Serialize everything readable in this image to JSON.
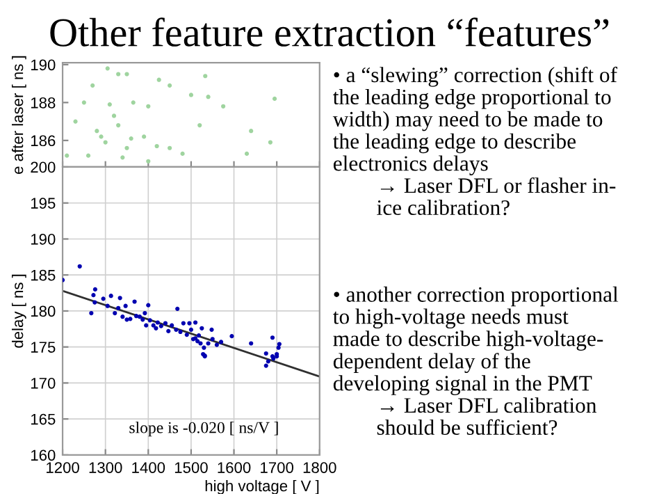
{
  "chart_data": [
    {
      "type": "scatter",
      "title": "Other feature extraction “features”",
      "ylabel": "e after laser [ ns ]",
      "xlim": [
        1200,
        1800
      ],
      "ylim": [
        184.6,
        190.1
      ],
      "yticks": [
        186,
        188,
        190
      ],
      "tick_labels": "y",
      "grid": false,
      "marker": "circle",
      "series": [
        {
          "color": "#9fd49f",
          "x": [
            1305,
            1330,
            1350,
            1270,
            1425,
            1533,
            1250,
            1310,
            1365,
            1400,
            1450,
            1500,
            1540,
            1575,
            1695,
            1230,
            1280,
            1300,
            1330,
            1360,
            1390,
            1420,
            1450,
            1520,
            1640,
            1685,
            1210,
            1260,
            1340,
            1400,
            1480,
            1630,
            1320,
            1290,
            1350
          ],
          "values": [
            189.8,
            189.5,
            189.5,
            188.9,
            189.2,
            189.4,
            188.0,
            187.9,
            188.0,
            187.8,
            188.9,
            188.4,
            188.3,
            187.8,
            188.2,
            187.0,
            186.5,
            185.9,
            186.8,
            186.1,
            186.2,
            185.7,
            185.6,
            186.8,
            186.5,
            185.9,
            185.2,
            185.2,
            185.1,
            184.9,
            185.3,
            185.3,
            187.3,
            186.2,
            185.6
          ]
        }
      ]
    },
    {
      "type": "scatter",
      "ylabel": "delay [ ns ]",
      "xlabel": "high voltage [ V ]",
      "xlim": [
        1200,
        1800
      ],
      "ylim": [
        160,
        200
      ],
      "xticks": [
        1200,
        1300,
        1400,
        1500,
        1600,
        1700,
        1800
      ],
      "yticks": [
        160,
        165,
        170,
        175,
        180,
        185,
        190,
        195,
        200
      ],
      "grid": true,
      "marker": "circle",
      "annotations": [
        "slope is -0.020 [ ns/V ]"
      ],
      "series": [
        {
          "color": "#0000b0",
          "x": [
            1200,
            1240,
            1267,
            1272,
            1276,
            1275,
            1295,
            1305,
            1313,
            1322,
            1330,
            1334,
            1340,
            1347,
            1350,
            1358,
            1368,
            1372,
            1380,
            1387,
            1392,
            1400,
            1395,
            1404,
            1412,
            1418,
            1422,
            1430,
            1440,
            1447,
            1455,
            1465,
            1468,
            1475,
            1482,
            1490,
            1496,
            1500,
            1505,
            1510,
            1510,
            1515,
            1518,
            1522,
            1525,
            1530,
            1532,
            1540,
            1548,
            1550,
            1560,
            1570,
            1595,
            1640,
            1675,
            1690,
            1692,
            1700,
            1704,
            1706,
            1528,
            1532,
            1675,
            1680,
            1690,
            1700
          ],
          "values": [
            184.3,
            186.2,
            179.7,
            182.2,
            183.0,
            181.2,
            181.7,
            180.7,
            182.1,
            179.7,
            180.4,
            181.8,
            179.2,
            180.7,
            178.8,
            178.9,
            181.3,
            179.3,
            179.2,
            178.8,
            179.7,
            180.8,
            178.0,
            178.7,
            178.0,
            177.6,
            178.4,
            177.9,
            178.3,
            177.2,
            178.0,
            177.4,
            180.3,
            177.1,
            178.3,
            176.7,
            178.3,
            177.4,
            176.1,
            178.4,
            176.2,
            175.8,
            176.6,
            175.5,
            177.6,
            174.9,
            173.8,
            175.5,
            177.4,
            176.1,
            175.3,
            175.7,
            176.5,
            175.5,
            174.1,
            176.3,
            173.4,
            173.7,
            174.9,
            175.4,
            174.0,
            173.7,
            172.4,
            173.0,
            173.7,
            174.0
          ]
        },
        {
          "type": "line",
          "color": "#303030",
          "x": [
            1200,
            1800
          ],
          "values": [
            182.8,
            170.9
          ],
          "marker": "none"
        }
      ]
    },
    {
      "type": "other",
      "annotations": [
        "• a “slewing” correction (shift of\nthe leading edge proportional to\nwidth) may need to be made to\nthe leading edge to describe\nelectronics delays\n        → Laser DFL or flasher in-\n        ice calibration?",
        "• another correction proportional\nto high-voltage needs must\nmade to describe high-voltage-\ndependent delay of the\ndeveloping signal in the PMT\n        → Laser DFL calibration\n        should be sufficient?"
      ]
    }
  ]
}
